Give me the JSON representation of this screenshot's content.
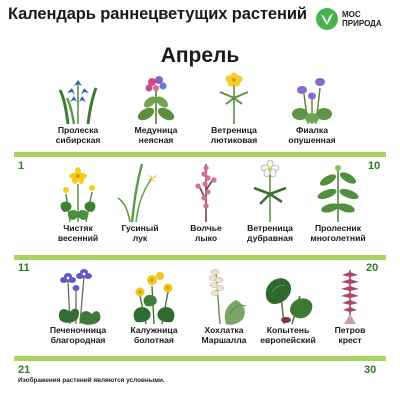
{
  "header": {
    "title": "Календарь раннецветущих растений",
    "logo_text": "МОС\nПРИРОДА"
  },
  "month": "Апрель",
  "day_markers": {
    "row2_start": "1",
    "row2_end": "10",
    "row3_start": "11",
    "row3_end": "20",
    "row3_bottom_start": "21",
    "row3_bottom_end": "30"
  },
  "plants": [
    {
      "label": "Пролеска\nсибирская",
      "icon": "scilla-icon"
    },
    {
      "label": "Медуница\nнеясная",
      "icon": "lungwort-icon"
    },
    {
      "label": "Ветреница\nлютиковая",
      "icon": "yellow-anemone-icon"
    },
    {
      "label": "Фиалка\nопушенная",
      "icon": "violet-icon"
    },
    {
      "label": "Чистяк\nвесенний",
      "icon": "celandine-icon"
    },
    {
      "label": "Гусиный\nлук",
      "icon": "gagea-icon"
    },
    {
      "label": "Волчье\nлыко",
      "icon": "daphne-icon"
    },
    {
      "label": "Ветреница\nдубравная",
      "icon": "wood-anemone-icon"
    },
    {
      "label": "Пролесник\nмноголетний",
      "icon": "mercury-icon"
    },
    {
      "label": "Печеночница\nблагородная",
      "icon": "hepatica-icon"
    },
    {
      "label": "Калужница\nболотная",
      "icon": "marsh-marigold-icon"
    },
    {
      "label": "Хохлатка\nМаршалла",
      "icon": "corydalis-icon"
    },
    {
      "label": "Копытень\nевропейский",
      "icon": "asarum-icon"
    },
    {
      "label": "Петров\nкрест",
      "icon": "toothwort-icon"
    }
  ],
  "disclaimer": "Изображения растений являются условными.",
  "colors": {
    "accent_green": "#a9d361",
    "logo_green": "#4caf50",
    "day_number": "#2f7a28"
  }
}
